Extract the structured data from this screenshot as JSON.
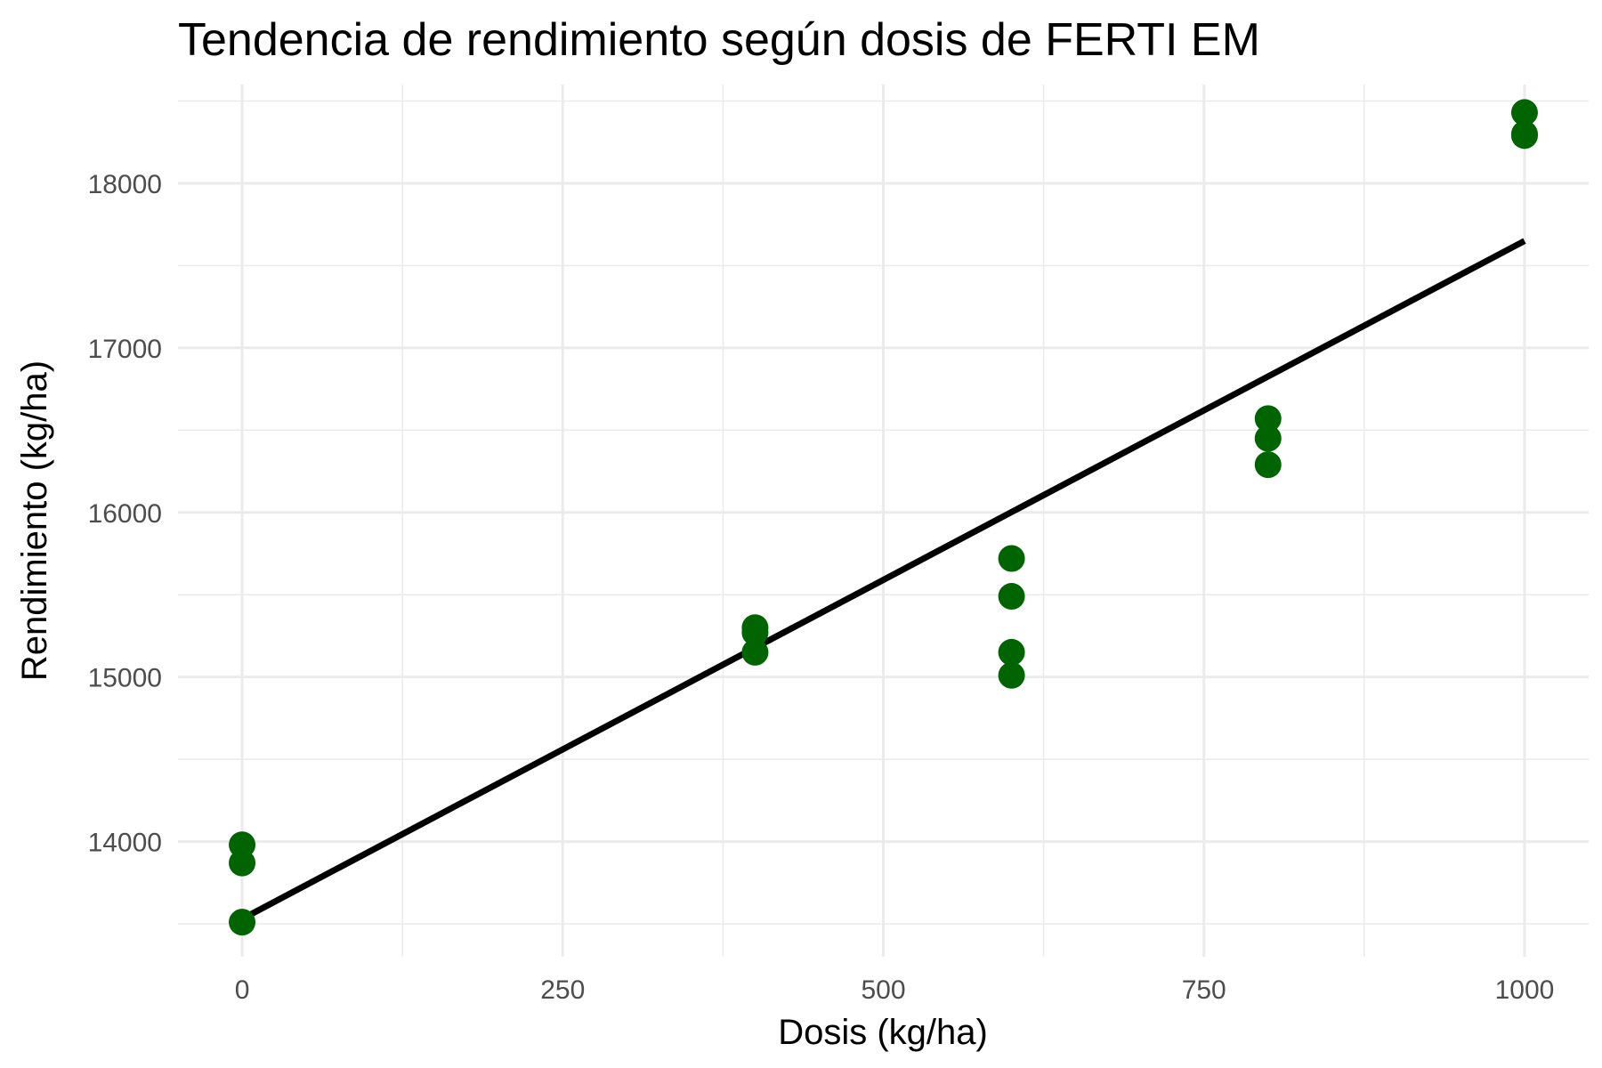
{
  "chart_data": {
    "type": "scatter",
    "title": "Tendencia de rendimiento según dosis de FERTI EM",
    "xlabel": "Dosis (kg/ha)",
    "ylabel": "Rendimiento (kg/ha)",
    "xlim": [
      -50,
      1050
    ],
    "ylim": [
      13300,
      18600
    ],
    "x_ticks": [
      0,
      250,
      500,
      750,
      1000
    ],
    "x_tick_labels": [
      "0",
      "250",
      "500",
      "750",
      "1000"
    ],
    "y_ticks": [
      14000,
      15000,
      16000,
      17000,
      18000
    ],
    "y_tick_labels": [
      "14000",
      "15000",
      "16000",
      "17000",
      "18000"
    ],
    "grid": true,
    "point_color": "#006400",
    "line_color": "#000000",
    "points": [
      {
        "x": 0,
        "y": 13980
      },
      {
        "x": 0,
        "y": 13870
      },
      {
        "x": 0,
        "y": 13510
      },
      {
        "x": 400,
        "y": 15300
      },
      {
        "x": 400,
        "y": 15270
      },
      {
        "x": 400,
        "y": 15150
      },
      {
        "x": 600,
        "y": 15720
      },
      {
        "x": 600,
        "y": 15490
      },
      {
        "x": 600,
        "y": 15150
      },
      {
        "x": 600,
        "y": 15010
      },
      {
        "x": 800,
        "y": 16570
      },
      {
        "x": 800,
        "y": 16450
      },
      {
        "x": 800,
        "y": 16290
      },
      {
        "x": 1000,
        "y": 18430
      },
      {
        "x": 1000,
        "y": 18300
      },
      {
        "x": 1000,
        "y": 18290
      }
    ],
    "trend_line": {
      "x": [
        0,
        1000
      ],
      "y": [
        13530,
        17650
      ]
    }
  }
}
